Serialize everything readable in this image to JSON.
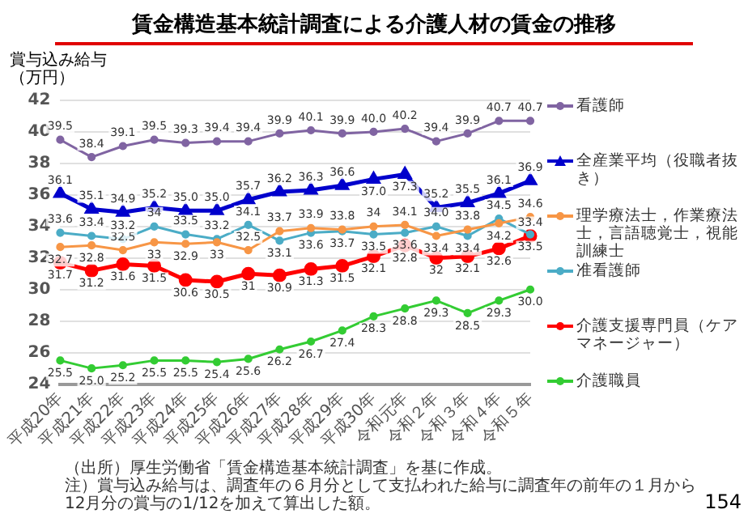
{
  "chart_data": {
    "type": "line",
    "title": "賃金構造基本統計調査による介護人材の賃金の推移",
    "ylabel": "賞与込み給与（万円）",
    "categories": [
      "平成20年",
      "平成21年",
      "平成22年",
      "平成23年",
      "平成24年",
      "平成25年",
      "平成26年",
      "平成27年",
      "平成28年",
      "平成29年",
      "平成30年",
      "令和元年",
      "令和２年",
      "令和３年",
      "令和４年",
      "令和５年"
    ],
    "ylim": [
      24,
      42
    ],
    "yticks": [
      24,
      26,
      28,
      30,
      32,
      34,
      36,
      38,
      40,
      42
    ],
    "grid": "y",
    "legend": "right",
    "marker": "circle",
    "line_style": "solid",
    "series": [
      {
        "name": "看護師",
        "color": "#8064a2",
        "values": [
          39.5,
          38.4,
          39.1,
          39.5,
          39.3,
          39.4,
          39.4,
          39.9,
          40.1,
          39.9,
          40.0,
          40.2,
          39.4,
          39.9,
          40.7,
          40.7
        ],
        "value_labels": [
          "39.5",
          "38.4",
          "39.1",
          "39.5",
          "39.3",
          "39.4",
          "39.4",
          "39.9",
          "40.1",
          "39.9",
          "40.0",
          "40.2",
          "39.4",
          "39.9",
          "40.7",
          "40.7"
        ]
      },
      {
        "name": "全産業平均（役職者抜き）",
        "color": "#0000cc",
        "marker": "triangle",
        "values": [
          36.1,
          35.1,
          34.9,
          35.2,
          35.0,
          35.0,
          35.7,
          36.2,
          36.3,
          36.6,
          37.0,
          37.3,
          35.2,
          35.5,
          36.1,
          36.9
        ],
        "value_labels": [
          "36.1",
          "35.1",
          "34.9",
          "35.2",
          "35.0",
          "35.0",
          "35.7",
          "36.2",
          "36.3",
          "36.6",
          "37.0",
          "37.3",
          "35.2",
          "35.5",
          "36.1",
          "36.9"
        ]
      },
      {
        "name": "理学療法士，作業療法士，言語聴覚士，視能訓練士",
        "color": "#f79646",
        "values": [
          32.7,
          32.8,
          32.5,
          33,
          32.9,
          33,
          32.5,
          33.7,
          33.9,
          33.8,
          34,
          34.1,
          33.4,
          33.8,
          34.2,
          34.6
        ],
        "value_labels": [
          "32.7",
          "32.8",
          "32.5",
          "33",
          "32.9",
          "33",
          "32.5",
          "33.7",
          "33.9",
          "33.8",
          "34",
          "34.1",
          "33.4",
          "33.8",
          "34.2",
          "34.6"
        ]
      },
      {
        "name": "准看護師",
        "color": "#4bacc6",
        "values": [
          33.6,
          33.4,
          33.2,
          34,
          33.5,
          33.2,
          34.1,
          33.1,
          33.6,
          33.7,
          33.5,
          33.6,
          34.0,
          33.4,
          34.5,
          33.5
        ],
        "value_labels": [
          "33.6",
          "33.4",
          "33.2",
          "34",
          "33.5",
          "33.2",
          "34.1",
          "33.1",
          "33.6",
          "33.7",
          "33.5",
          "33.6",
          "34.0",
          "33.4",
          "34.5",
          "33.5"
        ]
      },
      {
        "name": "介護支援専門員（ケアマネージャー）",
        "color": "#ff0000",
        "values": [
          31.7,
          31.2,
          31.6,
          31.5,
          30.6,
          30.5,
          31,
          30.9,
          31.3,
          31.5,
          32.1,
          32.8,
          32,
          32.1,
          32.6,
          33.4
        ],
        "value_labels": [
          "31.7",
          "31.2",
          "31.6",
          "31.5",
          "30.6",
          "30.5",
          "31",
          "30.9",
          "31.3",
          "31.5",
          "32.1",
          "32.8",
          "32",
          "32.1",
          "32.6",
          "33.4"
        ]
      },
      {
        "name": "介護職員",
        "color": "#33cc33",
        "values": [
          25.5,
          25.0,
          25.2,
          25.5,
          25.5,
          25.4,
          25.6,
          26.2,
          26.7,
          27.4,
          28.3,
          28.8,
          29.3,
          28.5,
          29.3,
          30.0
        ],
        "value_labels": [
          "25.5",
          "25.0",
          "25.2",
          "25.5",
          "25.5",
          "25.4",
          "25.6",
          "26.2",
          "26.7",
          "27.4",
          "28.3",
          "28.8",
          "29.3",
          "28.5",
          "29.3",
          "30.0"
        ]
      }
    ],
    "annotations": [
      "（出所）厚生労働省「賃金構造基本統計調査」を基に作成。",
      "注）賞与込み給与は、調査年の６月分として支払われた給与に調査年の前年の１月から12月分の賞与の1/12を加えて算出した額。",
      "154"
    ]
  }
}
